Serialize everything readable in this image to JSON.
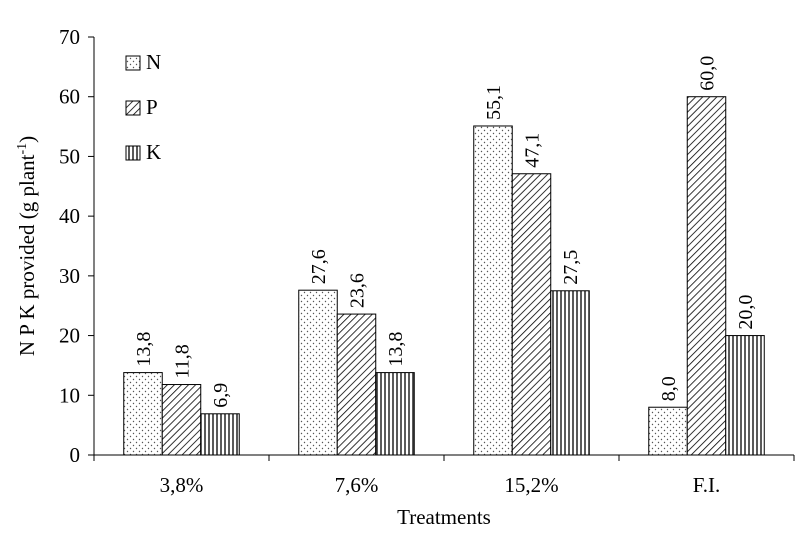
{
  "chart_data": {
    "type": "bar",
    "title": "",
    "xlabel": "Treatments",
    "ylabel": "N P K provided (g plant",
    "ylabel_superscript": "-1",
    "ylabel_close": ")",
    "ylim": [
      0,
      70
    ],
    "yticks": [
      0,
      10,
      20,
      30,
      40,
      50,
      60,
      70
    ],
    "categories": [
      "3,8%",
      "7,6%",
      "15,2%",
      "F.I."
    ],
    "series": [
      {
        "name": "N",
        "values": [
          13.8,
          27.6,
          55.1,
          8.0
        ],
        "labels": [
          "13,8",
          "27,6",
          "55,1",
          "8,0"
        ],
        "pattern": "dots"
      },
      {
        "name": "P",
        "values": [
          11.8,
          23.6,
          47.1,
          60.0
        ],
        "labels": [
          "11,8",
          "23,6",
          "47,1",
          "60,0"
        ],
        "pattern": "diagonal"
      },
      {
        "name": "K",
        "values": [
          6.9,
          13.8,
          27.5,
          20.0
        ],
        "labels": [
          "6,9",
          "13,8",
          "27,5",
          "20,0"
        ],
        "pattern": "vertical"
      }
    ],
    "legend_position": "top-left",
    "grid": false,
    "colors": {
      "bar_fill": "#ffffff",
      "stroke": "#000000"
    }
  }
}
